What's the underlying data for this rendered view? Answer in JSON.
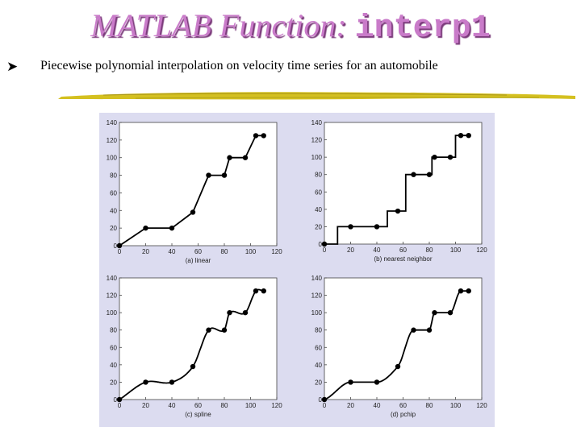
{
  "header": {
    "title_main": "MATLAB Function: ",
    "title_code": "interp1",
    "bullet_icon": "arrow-bullet-icon",
    "bullet_text": "Piecewise polynomial interpolation on velocity time series for an automobile"
  },
  "colors": {
    "title": "#c97bc9",
    "title_shadow": "#7a3a7a",
    "panel_bg": "#dcdcf0",
    "stroke": "#d4c020"
  },
  "chart_data": [
    {
      "type": "line",
      "method": "linear",
      "caption": "(a) linear",
      "x": [
        0,
        20,
        40,
        56,
        68,
        80,
        84,
        96,
        104,
        110
      ],
      "y": [
        0,
        20,
        20,
        38,
        80,
        80,
        100,
        100,
        125,
        125
      ],
      "xlim": [
        0,
        120
      ],
      "ylim": [
        0,
        140
      ],
      "xticks": [
        0,
        20,
        40,
        60,
        80,
        100,
        120
      ],
      "yticks": [
        0,
        20,
        40,
        60,
        80,
        100,
        120,
        140
      ]
    },
    {
      "type": "line",
      "method": "nearest",
      "caption": "(b) nearest neighbor",
      "x": [
        0,
        20,
        40,
        56,
        68,
        80,
        84,
        96,
        104,
        110
      ],
      "y": [
        0,
        20,
        20,
        38,
        80,
        80,
        100,
        100,
        125,
        125
      ],
      "xlim": [
        0,
        120
      ],
      "ylim": [
        0,
        140
      ],
      "xticks": [
        0,
        20,
        40,
        60,
        80,
        100,
        120
      ],
      "yticks": [
        0,
        20,
        40,
        60,
        80,
        100,
        120,
        140
      ]
    },
    {
      "type": "line",
      "method": "spline",
      "caption": "(c) spline",
      "x": [
        0,
        20,
        40,
        56,
        68,
        80,
        84,
        96,
        104,
        110
      ],
      "y": [
        0,
        20,
        20,
        38,
        80,
        80,
        100,
        100,
        125,
        125
      ],
      "xlim": [
        0,
        120
      ],
      "ylim": [
        0,
        140
      ],
      "xticks": [
        0,
        20,
        40,
        60,
        80,
        100,
        120
      ],
      "yticks": [
        0,
        20,
        40,
        60,
        80,
        100,
        120,
        140
      ]
    },
    {
      "type": "line",
      "method": "pchip",
      "caption": "(d) pchip",
      "x": [
        0,
        20,
        40,
        56,
        68,
        80,
        84,
        96,
        104,
        110
      ],
      "y": [
        0,
        20,
        20,
        38,
        80,
        80,
        100,
        100,
        125,
        125
      ],
      "xlim": [
        0,
        120
      ],
      "ylim": [
        0,
        140
      ],
      "xticks": [
        0,
        20,
        40,
        60,
        80,
        100,
        120
      ],
      "yticks": [
        0,
        20,
        40,
        60,
        80,
        100,
        120,
        140
      ]
    }
  ]
}
